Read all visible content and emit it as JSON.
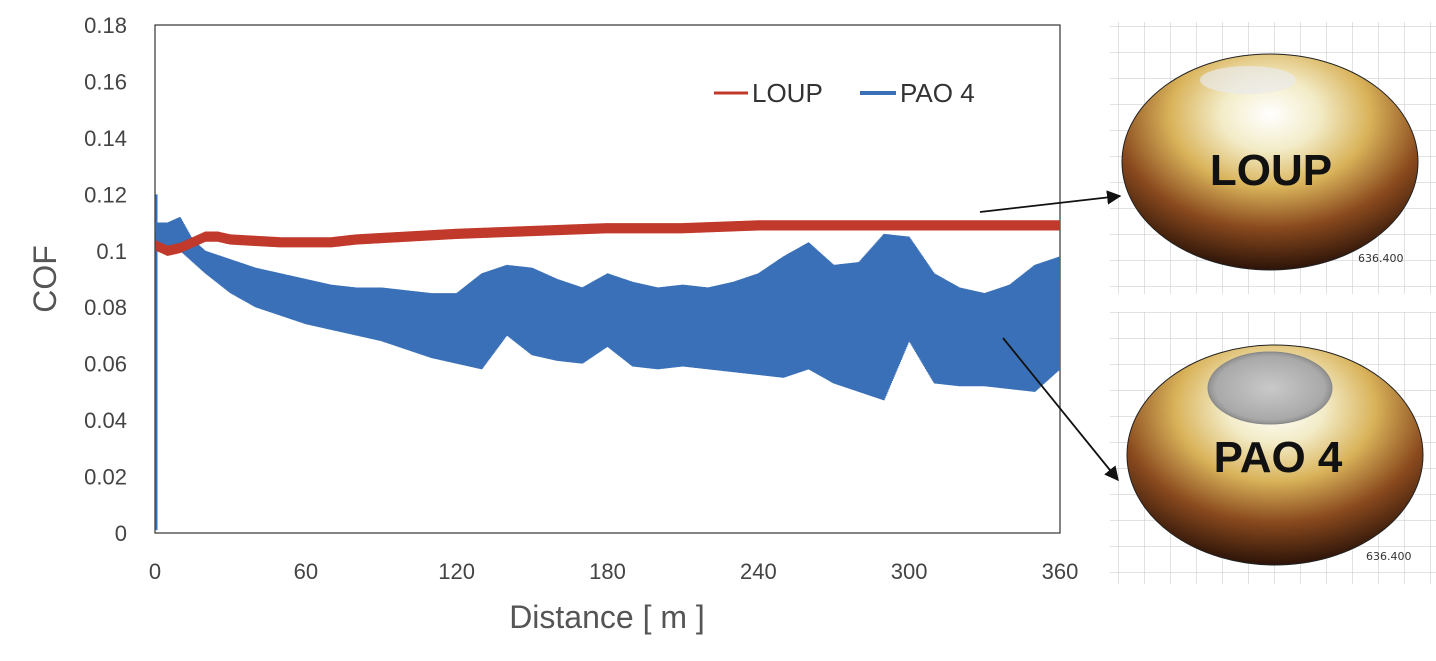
{
  "chart_data": {
    "type": "line",
    "title": "",
    "xlabel": "Distance [ m ]",
    "ylabel": "COF",
    "xlim": [
      0,
      360
    ],
    "ylim": [
      0,
      0.18
    ],
    "xticks": [
      0,
      60,
      120,
      180,
      240,
      300,
      360
    ],
    "yticks": [
      0,
      0.02,
      0.04,
      0.06,
      0.08,
      0.1,
      0.12,
      0.14,
      0.16,
      0.18
    ],
    "xtick_labels": [
      "0",
      "60",
      "120",
      "180",
      "240",
      "300",
      "360"
    ],
    "ytick_labels": [
      "0",
      "0.02",
      "0.04",
      "0.06",
      "0.08",
      "0.1",
      "0.12",
      "0.14",
      "0.16",
      "0.18"
    ],
    "grid": false,
    "legend_position": "top-right",
    "series": [
      {
        "name": "LOUP",
        "color": "#C0392B",
        "x": [
          0,
          5,
          10,
          15,
          20,
          25,
          30,
          40,
          50,
          60,
          70,
          80,
          90,
          100,
          120,
          150,
          180,
          210,
          240,
          270,
          300,
          330,
          360
        ],
        "y": [
          0.102,
          0.1,
          0.101,
          0.103,
          0.105,
          0.105,
          0.104,
          0.1035,
          0.103,
          0.103,
          0.103,
          0.104,
          0.1045,
          0.105,
          0.106,
          0.107,
          0.108,
          0.108,
          0.109,
          0.109,
          0.109,
          0.109,
          0.109
        ],
        "band": 0.0018
      },
      {
        "name": "PAO 4",
        "color": "#3A70B8",
        "x": [
          0,
          5,
          10,
          15,
          20,
          30,
          40,
          50,
          60,
          70,
          80,
          90,
          100,
          110,
          120,
          130,
          140,
          150,
          160,
          170,
          180,
          190,
          200,
          210,
          220,
          230,
          240,
          250,
          260,
          270,
          280,
          290,
          300,
          310,
          320,
          330,
          340,
          350,
          360
        ],
        "upper": [
          0.11,
          0.11,
          0.112,
          0.104,
          0.1,
          0.097,
          0.094,
          0.092,
          0.09,
          0.088,
          0.087,
          0.087,
          0.086,
          0.085,
          0.085,
          0.092,
          0.095,
          0.094,
          0.09,
          0.087,
          0.092,
          0.089,
          0.087,
          0.088,
          0.087,
          0.089,
          0.092,
          0.098,
          0.103,
          0.095,
          0.096,
          0.106,
          0.105,
          0.092,
          0.087,
          0.085,
          0.088,
          0.095,
          0.098
        ],
        "lower": [
          0.1,
          0.101,
          0.1,
          0.096,
          0.092,
          0.085,
          0.08,
          0.077,
          0.074,
          0.072,
          0.07,
          0.068,
          0.065,
          0.062,
          0.06,
          0.058,
          0.07,
          0.063,
          0.061,
          0.06,
          0.066,
          0.059,
          0.058,
          0.059,
          0.058,
          0.057,
          0.056,
          0.055,
          0.058,
          0.053,
          0.05,
          0.047,
          0.068,
          0.053,
          0.052,
          0.052,
          0.051,
          0.05,
          0.058
        ],
        "start_spike": 0.12
      }
    ],
    "annotations": [
      {
        "label": "LOUP",
        "scale": "636.400"
      },
      {
        "label": "PAO 4",
        "scale": "636.400"
      }
    ]
  }
}
